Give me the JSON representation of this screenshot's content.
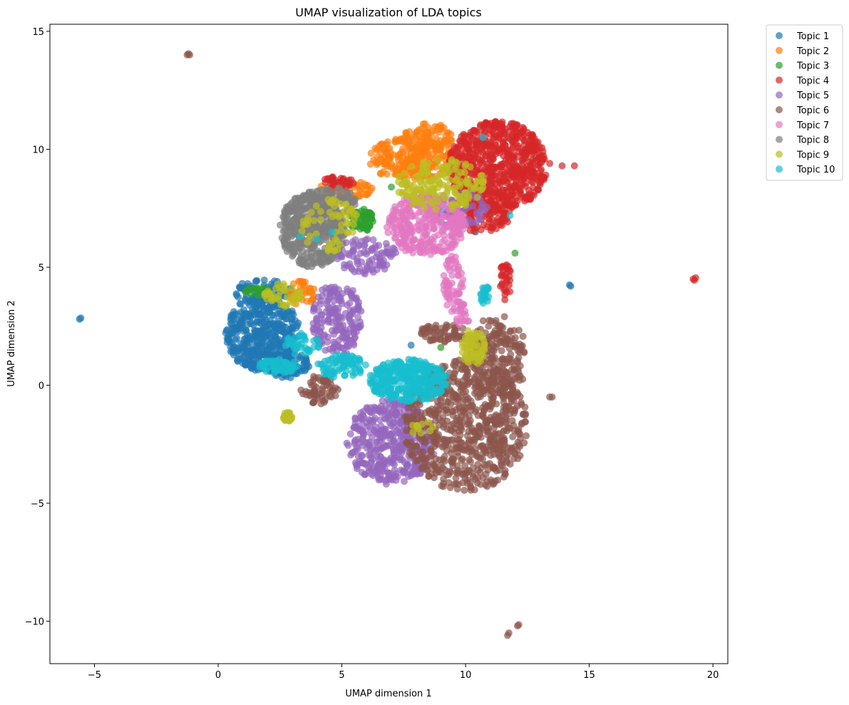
{
  "chart_data": {
    "type": "scatter",
    "title": "UMAP visualization of LDA topics",
    "xlabel": "UMAP dimension 1",
    "ylabel": "UMAP dimension 2",
    "xlim": [
      -6.8,
      20.6
    ],
    "ylim": [
      -11.8,
      15.3
    ],
    "xticks": [
      -5,
      0,
      5,
      10,
      15,
      20
    ],
    "yticks": [
      -10,
      -5,
      0,
      5,
      10,
      15
    ],
    "xtick_labels": [
      "−5",
      "0",
      "5",
      "10",
      "15",
      "20"
    ],
    "ytick_labels": [
      "−10",
      "−5",
      "0",
      "5",
      "10",
      "15"
    ],
    "grid": false,
    "legend_position": "outside-top-right",
    "series": [
      {
        "name": "Topic 1",
        "color": "#1f77b4",
        "regions": [
          {
            "cx": 1.8,
            "cy": 2.2,
            "rx": 1.5,
            "ry": 1.6,
            "n": 420
          },
          {
            "cx": 2.8,
            "cy": 0.9,
            "rx": 0.9,
            "ry": 0.6,
            "n": 90
          },
          {
            "cx": 1.8,
            "cy": 4.0,
            "rx": 1.2,
            "ry": 0.5,
            "n": 60
          }
        ],
        "points": [
          [
            -5.6,
            2.8
          ],
          [
            -5.55,
            2.85
          ],
          [
            14.2,
            4.25
          ],
          [
            14.25,
            4.2
          ],
          [
            7.8,
            1.7
          ],
          [
            10.4,
            6.5
          ]
        ]
      },
      {
        "name": "Topic 2",
        "color": "#ff7f0e",
        "regions": [
          {
            "cx": 7.8,
            "cy": 9.6,
            "rx": 1.8,
            "ry": 0.9,
            "n": 220
          },
          {
            "cx": 8.5,
            "cy": 10.5,
            "rx": 1.0,
            "ry": 0.6,
            "n": 80
          },
          {
            "cx": 3.4,
            "cy": 3.9,
            "rx": 0.5,
            "ry": 0.6,
            "n": 40
          },
          {
            "cx": 5.2,
            "cy": 8.3,
            "rx": 1.1,
            "ry": 0.4,
            "n": 50
          }
        ],
        "points": []
      },
      {
        "name": "Topic 3",
        "color": "#2ca02c",
        "regions": [
          {
            "cx": 5.8,
            "cy": 7.0,
            "rx": 0.5,
            "ry": 0.5,
            "n": 60
          },
          {
            "cx": 1.6,
            "cy": 4.0,
            "rx": 0.5,
            "ry": 0.2,
            "n": 20
          }
        ],
        "points": [
          [
            7.0,
            8.4
          ],
          [
            12.0,
            5.6
          ],
          [
            9.0,
            1.6
          ]
        ]
      },
      {
        "name": "Topic 4",
        "color": "#d62728",
        "regions": [
          {
            "cx": 11.3,
            "cy": 9.3,
            "rx": 2.0,
            "ry": 1.9,
            "n": 650
          },
          {
            "cx": 10.6,
            "cy": 7.4,
            "rx": 1.3,
            "ry": 0.9,
            "n": 140
          },
          {
            "cx": 11.6,
            "cy": 4.4,
            "rx": 0.25,
            "ry": 0.8,
            "n": 30
          },
          {
            "cx": 4.8,
            "cy": 8.6,
            "rx": 0.7,
            "ry": 0.25,
            "n": 30
          }
        ],
        "points": [
          [
            19.2,
            4.5
          ],
          [
            19.3,
            4.55
          ],
          [
            19.25,
            4.45
          ],
          [
            13.9,
            9.3
          ],
          [
            14.4,
            9.3
          ],
          [
            13.4,
            9.4
          ]
        ]
      },
      {
        "name": "Topic 5",
        "color": "#9467bd",
        "regions": [
          {
            "cx": 7.0,
            "cy": -2.4,
            "rx": 1.8,
            "ry": 1.8,
            "n": 420
          },
          {
            "cx": 4.8,
            "cy": 2.8,
            "rx": 1.0,
            "ry": 1.6,
            "n": 180
          },
          {
            "cx": 6.0,
            "cy": 5.5,
            "rx": 1.2,
            "ry": 0.8,
            "n": 90
          },
          {
            "cx": 9.7,
            "cy": 7.5,
            "rx": 1.2,
            "ry": 0.8,
            "n": 70
          }
        ],
        "points": []
      },
      {
        "name": "Topic 6",
        "color": "#8c564b",
        "regions": [
          {
            "cx": 10.0,
            "cy": -1.7,
            "rx": 2.5,
            "ry": 2.8,
            "n": 720
          },
          {
            "cx": 11.3,
            "cy": 1.2,
            "rx": 1.2,
            "ry": 1.8,
            "n": 200
          },
          {
            "cx": 4.1,
            "cy": -0.2,
            "rx": 0.8,
            "ry": 0.6,
            "n": 60
          },
          {
            "cx": 9.1,
            "cy": 2.2,
            "rx": 1.0,
            "ry": 0.4,
            "n": 60
          }
        ],
        "points": [
          [
            -1.2,
            14.05
          ],
          [
            -1.15,
            14.0
          ],
          [
            -1.25,
            14.0
          ],
          [
            12.1,
            -10.2
          ],
          [
            12.15,
            -10.15
          ],
          [
            11.7,
            -10.6
          ],
          [
            11.75,
            -10.5
          ],
          [
            13.4,
            -0.5
          ],
          [
            13.5,
            -0.5
          ]
        ]
      },
      {
        "name": "Topic 7",
        "color": "#e377c2",
        "regions": [
          {
            "cx": 8.4,
            "cy": 6.8,
            "rx": 1.6,
            "ry": 1.3,
            "n": 300
          },
          {
            "cx": 9.5,
            "cy": 4.3,
            "rx": 0.4,
            "ry": 1.2,
            "n": 60
          },
          {
            "cx": 9.9,
            "cy": 3.0,
            "rx": 0.3,
            "ry": 0.5,
            "n": 20
          }
        ],
        "points": []
      },
      {
        "name": "Topic 8",
        "color": "#7f7f7f",
        "regions": [
          {
            "cx": 3.8,
            "cy": 6.6,
            "rx": 1.3,
            "ry": 1.6,
            "n": 420
          },
          {
            "cx": 4.6,
            "cy": 7.8,
            "rx": 1.0,
            "ry": 0.6,
            "n": 90
          }
        ],
        "points": []
      },
      {
        "name": "Topic 9",
        "color": "#bcbd22",
        "regions": [
          {
            "cx": 9.0,
            "cy": 8.5,
            "rx": 1.8,
            "ry": 1.1,
            "n": 160
          },
          {
            "cx": 10.3,
            "cy": 1.6,
            "rx": 0.5,
            "ry": 0.8,
            "n": 70
          },
          {
            "cx": 4.5,
            "cy": 6.8,
            "rx": 1.2,
            "ry": 1.2,
            "n": 60
          },
          {
            "cx": 2.6,
            "cy": 3.8,
            "rx": 0.8,
            "ry": 0.5,
            "n": 40
          },
          {
            "cx": 2.8,
            "cy": -1.35,
            "rx": 0.2,
            "ry": 0.2,
            "n": 25
          },
          {
            "cx": 8.2,
            "cy": -1.8,
            "rx": 0.5,
            "ry": 0.3,
            "n": 12
          }
        ],
        "points": []
      },
      {
        "name": "Topic 10",
        "color": "#17becf",
        "regions": [
          {
            "cx": 7.7,
            "cy": 0.2,
            "rx": 1.6,
            "ry": 0.9,
            "n": 320
          },
          {
            "cx": 5.0,
            "cy": 0.8,
            "rx": 1.0,
            "ry": 0.5,
            "n": 80
          },
          {
            "cx": 2.4,
            "cy": 0.8,
            "rx": 0.8,
            "ry": 0.3,
            "n": 50
          },
          {
            "cx": 10.8,
            "cy": 3.8,
            "rx": 0.2,
            "ry": 0.4,
            "n": 20
          },
          {
            "cx": 3.4,
            "cy": 1.7,
            "rx": 0.7,
            "ry": 0.5,
            "n": 35
          }
        ],
        "points": [
          [
            4.0,
            6.2
          ],
          [
            4.6,
            6.5
          ],
          [
            10.7,
            10.5
          ],
          [
            11.8,
            7.2
          ],
          [
            3.3,
            6.3
          ]
        ]
      }
    ]
  }
}
